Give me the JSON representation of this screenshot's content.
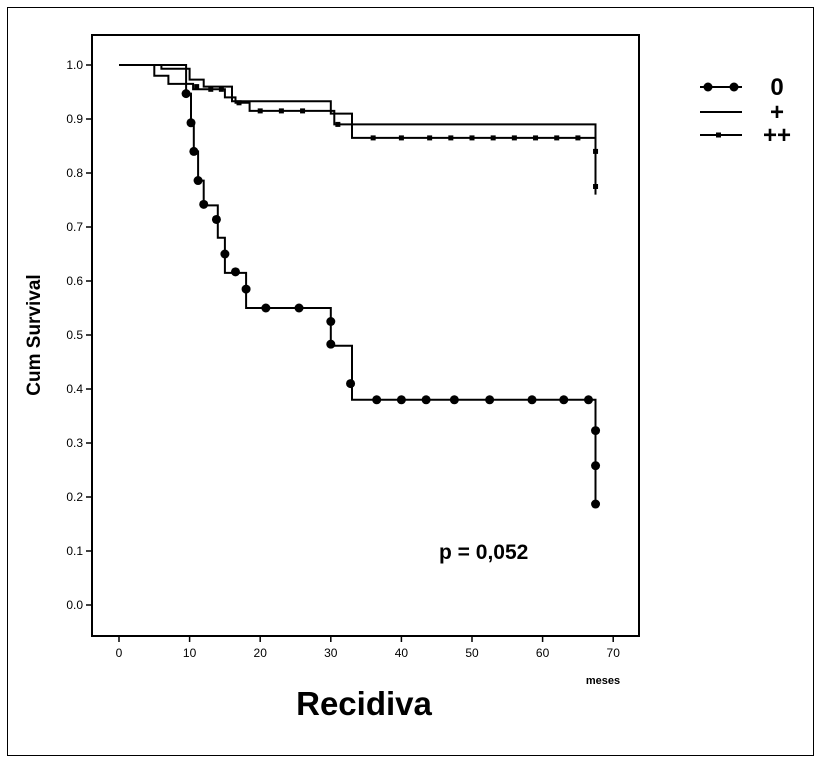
{
  "chart_data": {
    "type": "line",
    "subtype": "kaplan-meier",
    "xlabel": "Recidiva",
    "x_unit": "meses",
    "ylabel": "Cum Survival",
    "xlim": [
      0,
      70
    ],
    "ylim": [
      0.0,
      1.0
    ],
    "x_ticks": [
      "0",
      "10",
      "20",
      "30",
      "40",
      "50",
      "60",
      "70"
    ],
    "y_ticks": [
      "0.0",
      "0.1",
      "0.2",
      "0.3",
      "0.4",
      "0.5",
      "0.6",
      "0.7",
      "0.8",
      "0.9",
      "1.0"
    ],
    "grid": false,
    "legend_position": "top-right",
    "annotation": "p = 0,052",
    "series": [
      {
        "name": "0",
        "marker": "filled-circle",
        "steps": [
          [
            0,
            1.0
          ],
          [
            9.5,
            1.0
          ],
          [
            9.5,
            0.947
          ],
          [
            10.2,
            0.893
          ],
          [
            10.6,
            0.84
          ],
          [
            11.2,
            0.786
          ],
          [
            12,
            0.74
          ],
          [
            14,
            0.68
          ],
          [
            15,
            0.615
          ],
          [
            18,
            0.55
          ],
          [
            30,
            0.48
          ],
          [
            33,
            0.38
          ],
          [
            67.5,
            0.38
          ],
          [
            67.5,
            0.18
          ]
        ],
        "censored": [
          [
            9.5,
            0.947
          ],
          [
            10.2,
            0.893
          ],
          [
            10.6,
            0.84
          ],
          [
            11.2,
            0.786
          ],
          [
            12,
            0.742
          ],
          [
            13.8,
            0.714
          ],
          [
            15,
            0.65
          ],
          [
            16.5,
            0.617
          ],
          [
            18,
            0.585
          ],
          [
            20.8,
            0.55
          ],
          [
            25.5,
            0.55
          ],
          [
            30,
            0.525
          ],
          [
            30,
            0.483
          ],
          [
            32.8,
            0.41
          ],
          [
            36.5,
            0.38
          ],
          [
            40,
            0.38
          ],
          [
            43.5,
            0.38
          ],
          [
            47.5,
            0.38
          ],
          [
            52.5,
            0.38
          ],
          [
            58.5,
            0.38
          ],
          [
            63,
            0.38
          ],
          [
            66.5,
            0.38
          ],
          [
            67.5,
            0.323
          ],
          [
            67.5,
            0.258
          ],
          [
            67.5,
            0.187
          ]
        ]
      },
      {
        "name": "+",
        "marker": "none",
        "steps": [
          [
            0,
            1.0
          ],
          [
            6,
            1.0
          ],
          [
            6,
            0.993
          ],
          [
            10,
            0.993
          ],
          [
            10,
            0.973
          ],
          [
            12,
            0.973
          ],
          [
            12,
            0.96
          ],
          [
            16,
            0.96
          ],
          [
            16,
            0.933
          ],
          [
            30,
            0.933
          ],
          [
            30,
            0.91
          ],
          [
            33,
            0.91
          ],
          [
            33,
            0.89
          ],
          [
            67.5,
            0.89
          ],
          [
            67.5,
            0.8
          ]
        ],
        "censored": []
      },
      {
        "name": "++",
        "marker": "small-square",
        "steps": [
          [
            0,
            1.0
          ],
          [
            5,
            1.0
          ],
          [
            5,
            0.98
          ],
          [
            7,
            0.98
          ],
          [
            7,
            0.965
          ],
          [
            10.5,
            0.965
          ],
          [
            10.5,
            0.955
          ],
          [
            15,
            0.955
          ],
          [
            15,
            0.94
          ],
          [
            16.5,
            0.94
          ],
          [
            16.5,
            0.93
          ],
          [
            18.5,
            0.93
          ],
          [
            18.5,
            0.915
          ],
          [
            30.5,
            0.915
          ],
          [
            30.5,
            0.89
          ],
          [
            33,
            0.89
          ],
          [
            33,
            0.865
          ],
          [
            67.5,
            0.865
          ],
          [
            67.5,
            0.76
          ]
        ],
        "censored": [
          [
            11,
            0.96
          ],
          [
            13,
            0.955
          ],
          [
            14.5,
            0.955
          ],
          [
            17,
            0.93
          ],
          [
            20,
            0.915
          ],
          [
            23,
            0.915
          ],
          [
            26,
            0.915
          ],
          [
            31,
            0.89
          ],
          [
            36,
            0.865
          ],
          [
            40,
            0.865
          ],
          [
            44,
            0.865
          ],
          [
            47,
            0.865
          ],
          [
            50,
            0.865
          ],
          [
            53,
            0.865
          ],
          [
            56,
            0.865
          ],
          [
            59,
            0.865
          ],
          [
            62,
            0.865
          ],
          [
            65,
            0.865
          ],
          [
            67.5,
            0.84
          ],
          [
            67.5,
            0.775
          ]
        ]
      }
    ]
  }
}
